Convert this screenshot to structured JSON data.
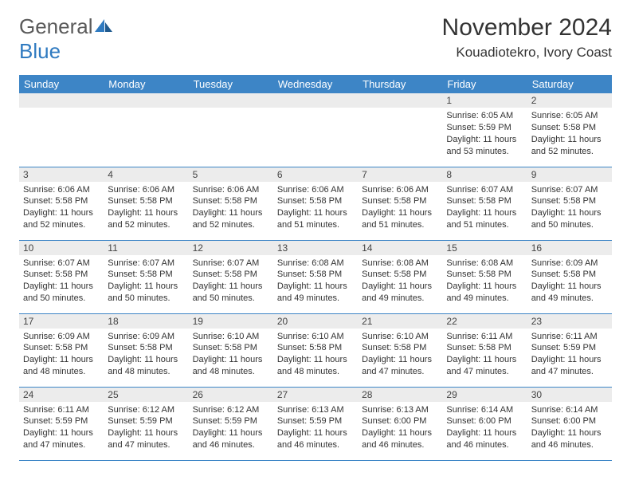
{
  "logo": {
    "general": "General",
    "blue": "Blue"
  },
  "title": "November 2024",
  "location": "Kouadiotekro, Ivory Coast",
  "colors": {
    "header_bg": "#3d85c6",
    "header_text": "#ffffff",
    "daynum_bg": "#ececec",
    "border": "#3d85c6",
    "logo_gray": "#5a5a5a",
    "logo_blue": "#2f7ac0",
    "text": "#333333",
    "background": "#ffffff"
  },
  "day_headers": [
    "Sunday",
    "Monday",
    "Tuesday",
    "Wednesday",
    "Thursday",
    "Friday",
    "Saturday"
  ],
  "weeks": [
    [
      null,
      null,
      null,
      null,
      null,
      {
        "n": "1",
        "sr": "6:05 AM",
        "ss": "5:59 PM",
        "dl": "11 hours and 53 minutes."
      },
      {
        "n": "2",
        "sr": "6:05 AM",
        "ss": "5:58 PM",
        "dl": "11 hours and 52 minutes."
      }
    ],
    [
      {
        "n": "3",
        "sr": "6:06 AM",
        "ss": "5:58 PM",
        "dl": "11 hours and 52 minutes."
      },
      {
        "n": "4",
        "sr": "6:06 AM",
        "ss": "5:58 PM",
        "dl": "11 hours and 52 minutes."
      },
      {
        "n": "5",
        "sr": "6:06 AM",
        "ss": "5:58 PM",
        "dl": "11 hours and 52 minutes."
      },
      {
        "n": "6",
        "sr": "6:06 AM",
        "ss": "5:58 PM",
        "dl": "11 hours and 51 minutes."
      },
      {
        "n": "7",
        "sr": "6:06 AM",
        "ss": "5:58 PM",
        "dl": "11 hours and 51 minutes."
      },
      {
        "n": "8",
        "sr": "6:07 AM",
        "ss": "5:58 PM",
        "dl": "11 hours and 51 minutes."
      },
      {
        "n": "9",
        "sr": "6:07 AM",
        "ss": "5:58 PM",
        "dl": "11 hours and 50 minutes."
      }
    ],
    [
      {
        "n": "10",
        "sr": "6:07 AM",
        "ss": "5:58 PM",
        "dl": "11 hours and 50 minutes."
      },
      {
        "n": "11",
        "sr": "6:07 AM",
        "ss": "5:58 PM",
        "dl": "11 hours and 50 minutes."
      },
      {
        "n": "12",
        "sr": "6:07 AM",
        "ss": "5:58 PM",
        "dl": "11 hours and 50 minutes."
      },
      {
        "n": "13",
        "sr": "6:08 AM",
        "ss": "5:58 PM",
        "dl": "11 hours and 49 minutes."
      },
      {
        "n": "14",
        "sr": "6:08 AM",
        "ss": "5:58 PM",
        "dl": "11 hours and 49 minutes."
      },
      {
        "n": "15",
        "sr": "6:08 AM",
        "ss": "5:58 PM",
        "dl": "11 hours and 49 minutes."
      },
      {
        "n": "16",
        "sr": "6:09 AM",
        "ss": "5:58 PM",
        "dl": "11 hours and 49 minutes."
      }
    ],
    [
      {
        "n": "17",
        "sr": "6:09 AM",
        "ss": "5:58 PM",
        "dl": "11 hours and 48 minutes."
      },
      {
        "n": "18",
        "sr": "6:09 AM",
        "ss": "5:58 PM",
        "dl": "11 hours and 48 minutes."
      },
      {
        "n": "19",
        "sr": "6:10 AM",
        "ss": "5:58 PM",
        "dl": "11 hours and 48 minutes."
      },
      {
        "n": "20",
        "sr": "6:10 AM",
        "ss": "5:58 PM",
        "dl": "11 hours and 48 minutes."
      },
      {
        "n": "21",
        "sr": "6:10 AM",
        "ss": "5:58 PM",
        "dl": "11 hours and 47 minutes."
      },
      {
        "n": "22",
        "sr": "6:11 AM",
        "ss": "5:58 PM",
        "dl": "11 hours and 47 minutes."
      },
      {
        "n": "23",
        "sr": "6:11 AM",
        "ss": "5:59 PM",
        "dl": "11 hours and 47 minutes."
      }
    ],
    [
      {
        "n": "24",
        "sr": "6:11 AM",
        "ss": "5:59 PM",
        "dl": "11 hours and 47 minutes."
      },
      {
        "n": "25",
        "sr": "6:12 AM",
        "ss": "5:59 PM",
        "dl": "11 hours and 47 minutes."
      },
      {
        "n": "26",
        "sr": "6:12 AM",
        "ss": "5:59 PM",
        "dl": "11 hours and 46 minutes."
      },
      {
        "n": "27",
        "sr": "6:13 AM",
        "ss": "5:59 PM",
        "dl": "11 hours and 46 minutes."
      },
      {
        "n": "28",
        "sr": "6:13 AM",
        "ss": "6:00 PM",
        "dl": "11 hours and 46 minutes."
      },
      {
        "n": "29",
        "sr": "6:14 AM",
        "ss": "6:00 PM",
        "dl": "11 hours and 46 minutes."
      },
      {
        "n": "30",
        "sr": "6:14 AM",
        "ss": "6:00 PM",
        "dl": "11 hours and 46 minutes."
      }
    ]
  ],
  "labels": {
    "sunrise": "Sunrise:",
    "sunset": "Sunset:",
    "daylight": "Daylight:"
  }
}
